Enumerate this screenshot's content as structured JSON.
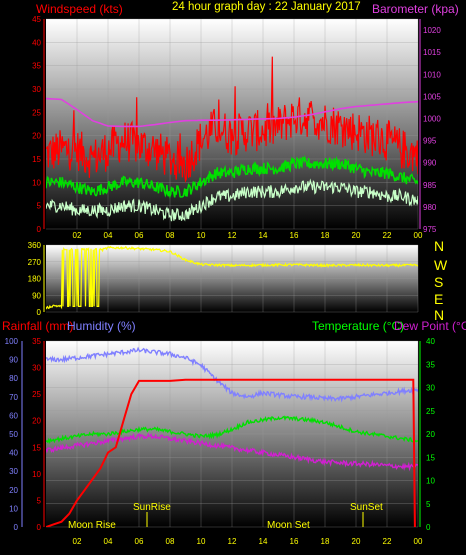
{
  "header": {
    "wind_label": "Windspeed (kts)",
    "title": "24 hour graph day : 22 January 2017",
    "baro_label": "Barometer (kpa)"
  },
  "lower_header": {
    "rain_label": "Rainfall (mm)",
    "humidity_label": "Humidity (%)",
    "temp_label": "Temperature (°C)",
    "dew_label": "Dew Point (°C)"
  },
  "colors": {
    "wind": "#ff0000",
    "wind_avg": "#00c000",
    "wind_min": "#c8ffc8",
    "barometer": "#e040e0",
    "direction": "#ffff00",
    "compass": "#ffff00",
    "rainfall": "#ff0000",
    "humidity": "#8080ff",
    "temperature": "#00e000",
    "dewpoint": "#d020d0",
    "header_title": "#ffff00",
    "temp_axis": "#00ff00",
    "rain_axis": "#ff0000",
    "humidity_axis": "#8080ff"
  },
  "compass": [
    "N",
    "W",
    "S",
    "E",
    "N"
  ],
  "markers": {
    "sunrise": "SunRise",
    "sunset": "SunSet",
    "moonrise": "Moon Rise",
    "moonset": "Moon Set"
  },
  "chart_data": [
    {
      "id": "wind",
      "type": "line",
      "title": "24 hour graph day : 22 January 2017",
      "xlabel": "",
      "ylabel": "Windspeed (kts)",
      "x_ticks": [
        "02",
        "04",
        "06",
        "08",
        "10",
        "12",
        "14",
        "16",
        "18",
        "20",
        "22",
        "00"
      ],
      "ylim": [
        0,
        45
      ],
      "y_ticks": [
        0,
        5,
        10,
        15,
        20,
        25,
        30,
        35,
        40,
        45
      ],
      "y2label": "Barometer (kpa)",
      "y2lim": [
        975,
        1022.5
      ],
      "y2_ticks": [
        975,
        980,
        985,
        990,
        995,
        1000,
        1005,
        1010,
        1015,
        1020
      ],
      "grid": true,
      "series": [
        {
          "name": "Windspeed (kts)",
          "axis": "left",
          "x": [
            0,
            1,
            2,
            3,
            4,
            5,
            6,
            7,
            8,
            9,
            10,
            11,
            12,
            13,
            14,
            15,
            16,
            17,
            18,
            19,
            20,
            21,
            22,
            23,
            24
          ],
          "values": [
            16,
            17,
            17,
            15,
            17,
            19,
            18,
            17,
            15,
            14,
            19,
            22,
            20,
            21,
            21,
            22,
            24,
            24,
            23,
            22,
            21,
            20,
            19,
            17,
            16
          ]
        },
        {
          "name": "Average",
          "axis": "left",
          "x": [
            0,
            1,
            2,
            3,
            4,
            5,
            6,
            7,
            8,
            9,
            10,
            11,
            12,
            13,
            14,
            15,
            16,
            17,
            18,
            19,
            20,
            21,
            22,
            23,
            24
          ],
          "values": [
            10,
            10,
            9,
            8,
            9,
            10,
            10,
            9,
            8,
            8,
            10,
            12,
            12,
            13,
            13,
            13,
            14,
            14,
            14,
            14,
            13,
            12,
            12,
            11,
            10
          ]
        },
        {
          "name": "Minimum",
          "axis": "left",
          "x": [
            0,
            1,
            2,
            3,
            4,
            5,
            6,
            7,
            8,
            9,
            10,
            11,
            12,
            13,
            14,
            15,
            16,
            17,
            18,
            19,
            20,
            21,
            22,
            23,
            24
          ],
          "values": [
            5,
            5,
            4,
            4,
            4,
            5,
            5,
            4,
            3,
            3,
            5,
            7,
            7,
            8,
            8,
            8,
            9,
            9,
            9,
            9,
            8,
            8,
            7,
            7,
            6
          ]
        },
        {
          "name": "Barometer (kpa)",
          "axis": "right",
          "x": [
            0,
            1,
            2,
            3,
            4,
            5,
            6,
            7,
            8,
            9,
            10,
            11,
            12,
            13,
            14,
            15,
            16,
            17,
            18,
            19,
            20,
            21,
            22,
            23,
            24
          ],
          "values": [
            1004.5,
            1004.3,
            1002.0,
            999.5,
            998.3,
            998.2,
            998.2,
            998.6,
            999.1,
            999.5,
            999.6,
            999.6,
            999.7,
            999.8,
            999.9,
            1000.0,
            1000.3,
            1000.8,
            1001.5,
            1002.2,
            1002.7,
            1003.0,
            1003.3,
            1003.6,
            1003.8
          ]
        }
      ]
    },
    {
      "id": "direction",
      "type": "line",
      "title": "",
      "xlabel": "",
      "ylabel": "",
      "ylim": [
        0,
        360
      ],
      "y_ticks": [
        0,
        90,
        180,
        270,
        360
      ],
      "grid": true,
      "series": [
        {
          "name": "",
          "x": [
            0,
            0.5,
            1,
            1.2,
            1.5,
            2,
            2.5,
            3,
            3.5,
            4,
            5,
            6,
            7,
            8,
            9,
            10,
            12,
            14,
            16,
            18,
            20,
            22,
            24
          ],
          "values": [
            20,
            35,
            30,
            280,
            40,
            320,
            60,
            340,
            330,
            345,
            345,
            340,
            335,
            325,
            280,
            255,
            250,
            252,
            254,
            250,
            252,
            250,
            252
          ]
        }
      ]
    },
    {
      "id": "temp",
      "type": "line",
      "title": "",
      "xlabel": "",
      "ylabel": "",
      "x_ticks": [
        "02",
        "04",
        "06",
        "08",
        "10",
        "12",
        "14",
        "16",
        "18",
        "20",
        "22",
        "00"
      ],
      "ylim": [
        0,
        40
      ],
      "y_ticks": [
        0,
        5,
        10,
        15,
        20,
        25,
        30,
        35,
        40
      ],
      "y_left_humidity": [
        0,
        100
      ],
      "y_left_humidity_ticks": [
        0,
        10,
        20,
        30,
        40,
        50,
        60,
        70,
        80,
        90,
        100
      ],
      "y_left_rain": [
        0,
        35
      ],
      "y_left_rain_ticks": [
        0,
        5,
        10,
        15,
        20,
        25,
        30,
        35
      ],
      "grid": true,
      "series": [
        {
          "name": "Humidity (%)",
          "axis": "humidity",
          "x": [
            0,
            1,
            2,
            3,
            4,
            5,
            6,
            7,
            8,
            9,
            10,
            11,
            12,
            13,
            14,
            15,
            16,
            17,
            18,
            19,
            20,
            21,
            22,
            23,
            24
          ],
          "values": [
            90,
            90,
            91,
            92,
            93,
            94,
            95,
            94,
            93,
            91,
            87,
            79,
            72,
            70,
            72,
            71,
            70,
            70,
            69,
            69,
            70,
            71,
            72,
            73,
            74
          ]
        },
        {
          "name": "Rainfall (mm)",
          "axis": "rain",
          "x": [
            0,
            0.5,
            1,
            1.5,
            2,
            2.5,
            3,
            3.5,
            4,
            4.5,
            5,
            5.5,
            6,
            6.5,
            7,
            8,
            9,
            10,
            12,
            14,
            16,
            18,
            20,
            22,
            23.7,
            23.8
          ],
          "values": [
            0,
            0.5,
            1,
            2.5,
            5,
            7,
            9,
            11,
            14,
            15,
            20,
            25,
            27.5,
            27.5,
            27.5,
            27.5,
            27.7,
            27.7,
            27.7,
            27.7,
            27.7,
            27.7,
            27.7,
            27.7,
            27.7,
            0
          ]
        },
        {
          "name": "Temperature (°C)",
          "axis": "right",
          "x": [
            0,
            1,
            2,
            3,
            4,
            5,
            6,
            7,
            8,
            9,
            10,
            11,
            12,
            13,
            14,
            15,
            16,
            17,
            18,
            19,
            20,
            21,
            22,
            23,
            24
          ],
          "values": [
            18.5,
            19,
            19.5,
            20,
            20,
            20.5,
            21,
            21,
            20.5,
            20,
            19.5,
            19.8,
            21,
            22.5,
            23,
            23.5,
            23.3,
            23,
            22.5,
            21.5,
            20.5,
            20,
            19.5,
            19,
            18.5
          ]
        },
        {
          "name": "Dew Point (°C)",
          "axis": "right",
          "x": [
            0,
            1,
            2,
            3,
            4,
            5,
            6,
            7,
            8,
            9,
            10,
            11,
            12,
            13,
            14,
            15,
            16,
            17,
            18,
            19,
            20,
            21,
            22,
            23,
            24
          ],
          "values": [
            16.5,
            17,
            17.5,
            18,
            18.5,
            19,
            19.5,
            19.5,
            19,
            18.5,
            18,
            17.5,
            17,
            16.5,
            16,
            15.5,
            15,
            14.5,
            14,
            13.8,
            13.6,
            13.5,
            13.2,
            13,
            13
          ]
        }
      ]
    }
  ]
}
